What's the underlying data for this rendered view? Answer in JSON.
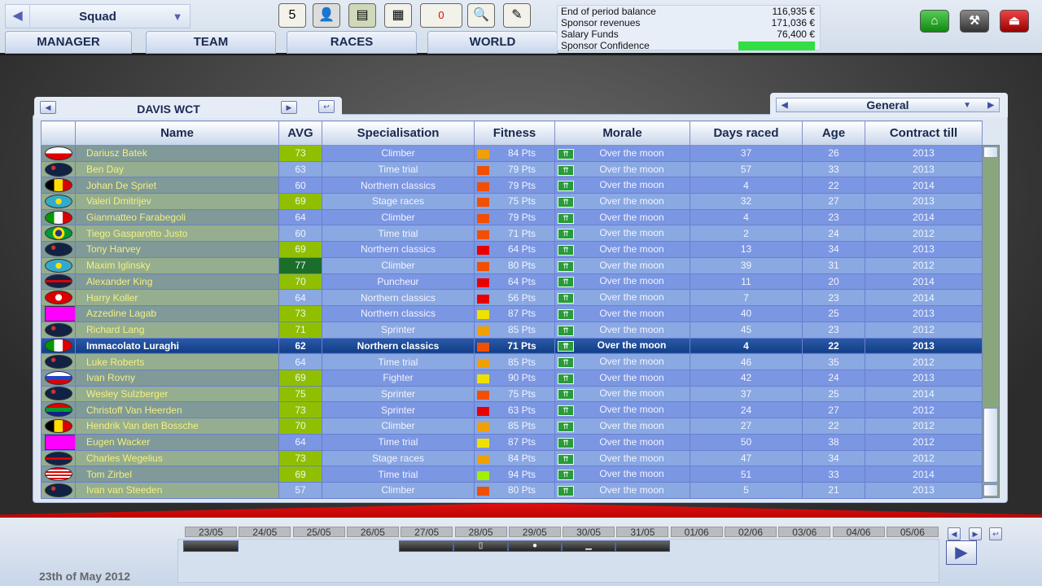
{
  "header": {
    "selector": "Squad",
    "tabs": [
      "MANAGER",
      "TEAM",
      "RACES",
      "WORLD"
    ],
    "icons": [
      "calendar-icon",
      "rider-icon",
      "money-icon",
      "newspaper-icon",
      "mail-icon",
      "search-icon",
      "notes-icon"
    ],
    "calendar_day": "5",
    "mail_count": "0",
    "right_buttons": [
      "home-icon",
      "tools-icon",
      "exit-icon"
    ]
  },
  "finance": {
    "rows": [
      {
        "label": "End of period balance",
        "value": "116,935 €"
      },
      {
        "label": "Sponsor revenues",
        "value": "171,036 €"
      },
      {
        "label": "Salary Funds",
        "value": "76,400 €"
      }
    ],
    "confidence_label": "Sponsor Confidence",
    "confidence_level": 1.0,
    "confidence_color": "#33dd44"
  },
  "team": {
    "name": "DAVIS WCT",
    "view": "General"
  },
  "columns": [
    "Name",
    "AVG",
    "Specialisation",
    "Fitness",
    "Morale",
    "Days raced",
    "Age",
    "Contract till"
  ],
  "riders": [
    {
      "flag": "poland",
      "name": "Dariusz Batek",
      "avg": "73",
      "spec": "Climber",
      "fc": "#f0a000",
      "fit": "84 Pts",
      "morale": "Over the moon",
      "days": "37",
      "age": "26",
      "contract": "2013"
    },
    {
      "flag": "australia",
      "name": "Ben Day",
      "avg": "63",
      "spec": "Time trial",
      "fc": "#f05000",
      "fit": "79 Pts",
      "morale": "Over the moon",
      "days": "57",
      "age": "33",
      "contract": "2013"
    },
    {
      "flag": "belgium",
      "name": "Johan De Spriet",
      "avg": "60",
      "spec": "Northern classics",
      "fc": "#f05000",
      "fit": "79 Pts",
      "morale": "Over the moon",
      "days": "4",
      "age": "22",
      "contract": "2014"
    },
    {
      "flag": "kazakhstan",
      "name": "Valeri Dmitrijev",
      "avg": "69",
      "spec": "Stage races",
      "fc": "#f05000",
      "fit": "75 Pts",
      "morale": "Over the moon",
      "days": "32",
      "age": "27",
      "contract": "2013"
    },
    {
      "flag": "italy",
      "name": "Gianmatteo Farabegoli",
      "avg": "64",
      "spec": "Climber",
      "fc": "#f05000",
      "fit": "79 Pts",
      "morale": "Over the moon",
      "days": "4",
      "age": "23",
      "contract": "2014"
    },
    {
      "flag": "brazil",
      "name": "Tiego Gasparotto Justo",
      "avg": "60",
      "spec": "Time trial",
      "fc": "#f05000",
      "fit": "71 Pts",
      "morale": "Over the moon",
      "days": "2",
      "age": "24",
      "contract": "2012"
    },
    {
      "flag": "australia",
      "name": "Tony Harvey",
      "avg": "69",
      "spec": "Northern classics",
      "fc": "#e80000",
      "fit": "64 Pts",
      "morale": "Over the moon",
      "days": "13",
      "age": "34",
      "contract": "2013"
    },
    {
      "flag": "kazakhstan",
      "name": "Maxim Iglinsky",
      "avg": "77",
      "spec": "Climber",
      "fc": "#f05000",
      "fit": "80 Pts",
      "morale": "Over the moon",
      "days": "39",
      "age": "31",
      "contract": "2012"
    },
    {
      "flag": "uk",
      "name": "Alexander King",
      "avg": "70",
      "spec": "Puncheur",
      "fc": "#e80000",
      "fit": "64 Pts",
      "morale": "Over the moon",
      "days": "11",
      "age": "20",
      "contract": "2014"
    },
    {
      "flag": "switzerland",
      "name": "Harry Koller",
      "avg": "64",
      "spec": "Northern classics",
      "fc": "#e80000",
      "fit": "56 Pts",
      "morale": "Over the moon",
      "days": "7",
      "age": "23",
      "contract": "2014"
    },
    {
      "flag": "unknown",
      "name": "Azzedine Lagab",
      "avg": "73",
      "spec": "Northern classics",
      "fc": "#f0e000",
      "fit": "87 Pts",
      "morale": "Over the moon",
      "days": "40",
      "age": "25",
      "contract": "2013"
    },
    {
      "flag": "australia",
      "name": "Richard Lang",
      "avg": "71",
      "spec": "Sprinter",
      "fc": "#f0a000",
      "fit": "85 Pts",
      "morale": "Over the moon",
      "days": "45",
      "age": "23",
      "contract": "2012"
    },
    {
      "flag": "italy",
      "name": "Immacolato Luraghi",
      "avg": "62",
      "spec": "Northern classics",
      "fc": "#f05000",
      "fit": "71 Pts",
      "morale": "Over the moon",
      "days": "4",
      "age": "22",
      "contract": "2013",
      "selected": true
    },
    {
      "flag": "australia",
      "name": "Luke Roberts",
      "avg": "64",
      "spec": "Time trial",
      "fc": "#f0a000",
      "fit": "85 Pts",
      "morale": "Over the moon",
      "days": "46",
      "age": "35",
      "contract": "2012"
    },
    {
      "flag": "russia",
      "name": "Ivan Rovny",
      "avg": "69",
      "spec": "Fighter",
      "fc": "#f0e000",
      "fit": "90 Pts",
      "morale": "Over the moon",
      "days": "42",
      "age": "24",
      "contract": "2013"
    },
    {
      "flag": "australia",
      "name": "Wesley Sulzberger",
      "avg": "75",
      "spec": "Sprinter",
      "fc": "#f05000",
      "fit": "75 Pts",
      "morale": "Over the moon",
      "days": "37",
      "age": "25",
      "contract": "2014"
    },
    {
      "flag": "southafrica",
      "name": "Christoff Van Heerden",
      "avg": "73",
      "spec": "Sprinter",
      "fc": "#e80000",
      "fit": "63 Pts",
      "morale": "Over the moon",
      "days": "24",
      "age": "27",
      "contract": "2012"
    },
    {
      "flag": "belgium",
      "name": "Hendrik Van den Bossche",
      "avg": "70",
      "spec": "Climber",
      "fc": "#f0a000",
      "fit": "85 Pts",
      "morale": "Over the moon",
      "days": "27",
      "age": "22",
      "contract": "2012"
    },
    {
      "flag": "unknown",
      "name": "Eugen Wacker",
      "avg": "64",
      "spec": "Time trial",
      "fc": "#f0e000",
      "fit": "87 Pts",
      "morale": "Over the moon",
      "days": "50",
      "age": "38",
      "contract": "2012"
    },
    {
      "flag": "uk",
      "name": "Charles Wegelius",
      "avg": "73",
      "spec": "Stage races",
      "fc": "#f0a000",
      "fit": "84 Pts",
      "morale": "Over the moon",
      "days": "47",
      "age": "34",
      "contract": "2012"
    },
    {
      "flag": "usa",
      "name": "Tom Zirbel",
      "avg": "69",
      "spec": "Time trial",
      "fc": "#a0f000",
      "fit": "94 Pts",
      "morale": "Over the moon",
      "days": "51",
      "age": "33",
      "contract": "2014"
    },
    {
      "flag": "australia",
      "name": "Ivan van Steeden",
      "avg": "57",
      "spec": "Climber",
      "fc": "#f05000",
      "fit": "80 Pts",
      "morale": "Over the moon",
      "days": "5",
      "age": "21",
      "contract": "2013"
    }
  ],
  "avg_colors": {
    "good": "#8fbf00",
    "best": "#1a6e2a"
  },
  "timeline": {
    "dates": [
      "23/05",
      "24/05",
      "25/05",
      "26/05",
      "27/05",
      "28/05",
      "29/05",
      "30/05",
      "31/05",
      "01/06",
      "02/06",
      "03/06",
      "04/06",
      "05/06"
    ]
  },
  "current_date": "23th of May 2012"
}
